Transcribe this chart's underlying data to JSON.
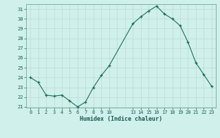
{
  "x": [
    0,
    1,
    2,
    3,
    4,
    5,
    6,
    7,
    8,
    9,
    10,
    13,
    14,
    15,
    16,
    17,
    18,
    19,
    20,
    21,
    22,
    23
  ],
  "y": [
    24.0,
    23.5,
    22.2,
    22.1,
    22.2,
    21.6,
    21.0,
    21.5,
    23.0,
    24.2,
    25.2,
    29.5,
    30.2,
    30.8,
    31.3,
    30.5,
    30.0,
    29.3,
    27.6,
    25.5,
    24.3,
    23.1
  ],
  "bg_color": "#cff0eb",
  "grid_color": "#c0d8d4",
  "line_color": "#1a6b5a",
  "marker_color": "#1a6b5a",
  "xlabel": "Humidex (Indice chaleur)",
  "ylim_min": 21,
  "ylim_max": 31.5,
  "yticks": [
    21,
    22,
    23,
    24,
    25,
    26,
    27,
    28,
    29,
    30,
    31
  ],
  "xtick_labels": [
    "0",
    "1",
    "2",
    "3",
    "4",
    "5",
    "6",
    "7",
    "8",
    "9",
    "10",
    "13",
    "14",
    "15",
    "16",
    "17",
    "18",
    "19",
    "20",
    "21",
    "22",
    "23"
  ],
  "xtick_positions": [
    0,
    1,
    2,
    3,
    4,
    5,
    6,
    7,
    8,
    9,
    10,
    13,
    14,
    15,
    16,
    17,
    18,
    19,
    20,
    21,
    22,
    23
  ],
  "xlim_min": -0.5,
  "xlim_max": 23.5,
  "font_size_ticks": 5,
  "font_size_xlabel": 6,
  "linewidth": 0.8,
  "markersize": 3.5,
  "marker": "+"
}
